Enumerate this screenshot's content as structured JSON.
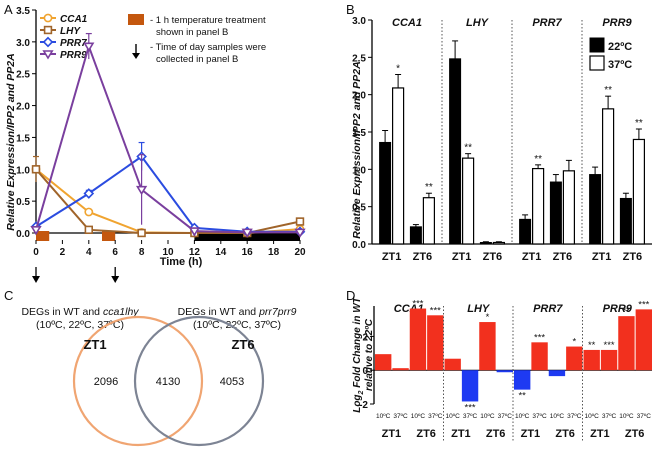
{
  "chart_data": [
    {
      "panel": "A",
      "type": "line",
      "ylabel": "Relative Expression/IPP2 and PP2A",
      "xlabel": "Time (h)",
      "xlim": [
        0,
        20
      ],
      "ylim": [
        0,
        3.5
      ],
      "xticks": [
        "0",
        "2",
        "4",
        "6",
        "8",
        "10",
        "12",
        "14",
        "16",
        "18",
        "20"
      ],
      "yticks": [
        "0.0",
        "0.5",
        "1.0",
        "1.5",
        "2.0",
        "2.5",
        "3.0",
        "3.5"
      ],
      "legend_title_note": "- 1 h temperature treatment shown in panel B",
      "legend_note_line1": "- 1 h temperature treatment",
      "legend_note_line2": "shown in panel B",
      "legend_arrow_line1": "- Time of day samples were",
      "legend_arrow_line2": "collected in panel B",
      "x": [
        0,
        4,
        8,
        12,
        16,
        20
      ],
      "series": [
        {
          "name": "CCA1",
          "color": "#f0a430",
          "marker": "circle",
          "values": [
            1.0,
            0.33,
            0.01,
            0.0,
            0.0,
            0.06
          ],
          "err": [
            0.05,
            0.03,
            0.01,
            0.01,
            0.01,
            0.02
          ]
        },
        {
          "name": "LHY",
          "color": "#a0642a",
          "marker": "square",
          "values": [
            1.0,
            0.05,
            0.0,
            0.0,
            0.0,
            0.18
          ],
          "err": [
            0.2,
            0.02,
            0.01,
            0.01,
            0.01,
            0.05
          ]
        },
        {
          "name": "PRR7",
          "color": "#2b4ce0",
          "marker": "diamond",
          "values": [
            0.1,
            0.62,
            1.2,
            0.08,
            0.02,
            0.02
          ],
          "err": [
            0.03,
            0.05,
            0.22,
            0.03,
            0.01,
            0.01
          ]
        },
        {
          "name": "PRR9",
          "color": "#7a3f9e",
          "marker": "triangle-down",
          "values": [
            0.05,
            2.93,
            0.68,
            0.03,
            0.01,
            0.01
          ],
          "err": [
            0.02,
            0.2,
            0.55,
            0.02,
            0.01,
            0.01
          ]
        }
      ],
      "arrows_at": [
        0,
        6
      ],
      "treatment_bars": [
        [
          0,
          1
        ],
        [
          5,
          6
        ]
      ],
      "dark_period": [
        12,
        20
      ]
    },
    {
      "panel": "B",
      "type": "bar",
      "ylabel": "Relative Expression/IPP2 and PP2A",
      "ylim": [
        0,
        3.0
      ],
      "yticks": [
        "0.0",
        "0.5",
        "1.0",
        "1.5",
        "2.0",
        "2.5",
        "3.0"
      ],
      "genes": [
        "CCA1",
        "LHY",
        "PRR7",
        "PRR9"
      ],
      "timepoints": [
        "ZT1",
        "ZT6"
      ],
      "legend": [
        {
          "name": "22ºC",
          "color": "#000000"
        },
        {
          "name": "37ºC",
          "color": "#ffffff"
        }
      ],
      "values_22C": [
        1.36,
        0.23,
        2.48,
        0.02,
        0.33,
        0.83,
        0.93,
        0.61
      ],
      "values_37C": [
        2.09,
        0.62,
        1.15,
        0.02,
        1.01,
        0.98,
        1.81,
        1.4
      ],
      "err_22C": [
        0.16,
        0.03,
        0.24,
        0.01,
        0.06,
        0.1,
        0.1,
        0.07
      ],
      "err_37C": [
        0.18,
        0.06,
        0.06,
        0.01,
        0.05,
        0.14,
        0.17,
        0.14
      ],
      "sig_37C": [
        "*",
        "**",
        "**",
        "",
        "**",
        "",
        "**",
        "**"
      ]
    },
    {
      "panel": "D",
      "type": "bar",
      "ylabel_line1": "Log",
      "ylabel_sub": "2",
      "ylabel_rest": " Fold Change in WT",
      "ylabel_line2": "relative to 22ºC",
      "ylim": [
        -2,
        3.8
      ],
      "yticks": [
        "-2",
        "0",
        "2"
      ],
      "genes": [
        "CCA1",
        "LHY",
        "PRR7",
        "PRR9"
      ],
      "timepoints": [
        "ZT1",
        "ZT6"
      ],
      "temps": [
        "10ºC",
        "37ºC"
      ],
      "values": [
        0.95,
        0.12,
        3.65,
        3.25,
        0.68,
        -1.85,
        2.85,
        -0.12,
        -1.15,
        1.65,
        -0.35,
        1.4,
        1.2,
        1.2,
        3.2,
        3.6
      ],
      "sig": [
        "",
        "",
        "***",
        "***",
        "",
        "***",
        "*",
        "",
        "**",
        "***",
        "",
        "*",
        "**",
        "***",
        "**",
        "***"
      ],
      "pos_color": "#f2301e",
      "neg_color": "#1e3af2"
    }
  ],
  "panel_labels": [
    "A",
    "B",
    "C",
    "D"
  ],
  "venn": {
    "left_title_line1": "DEGs in WT and ",
    "left_title_gene": "cca1lhy",
    "left_title_line2": "(10ºC, 22ºC, 37ºC)",
    "right_title_line1": "DEGs in WT and ",
    "right_title_gene": "prr7prr9",
    "right_title_line2": "(10ºC, 22ºC, 37ºC)",
    "left_label": "ZT1",
    "right_label": "ZT6",
    "left_only": "2096",
    "overlap": "4130",
    "right_only": "4053",
    "left_color": "#f0a572",
    "right_color": "#7d8494"
  }
}
